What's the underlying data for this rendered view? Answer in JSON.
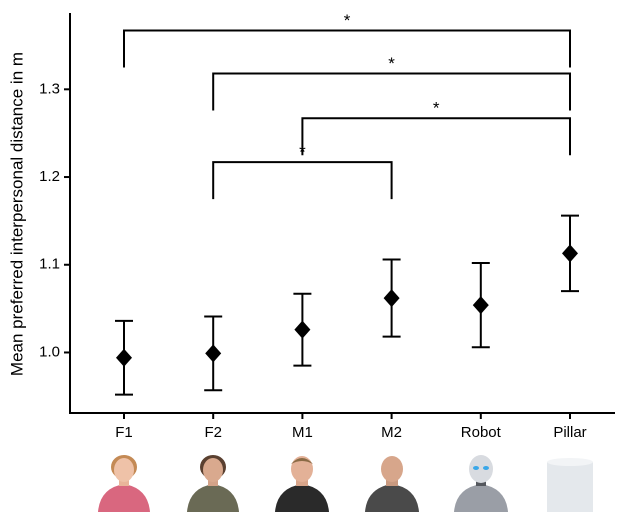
{
  "chart_data": {
    "type": "errorbar",
    "y_label": "Mean preferred interpersonal distance in m",
    "categories": [
      "F1",
      "F2",
      "M1",
      "M2",
      "Robot",
      "Pillar"
    ],
    "values": [
      0.994,
      0.999,
      1.026,
      1.062,
      1.054,
      1.113
    ],
    "errors": [
      0.042,
      0.042,
      0.041,
      0.044,
      0.048,
      0.043
    ],
    "color": "#000000",
    "ylim": [
      0.931,
      1.387
    ],
    "yticks": [
      {
        "value": 1,
        "label": "1.0"
      },
      1.1,
      1.2,
      1.3
    ],
    "brackets": [
      {
        "between": [
          0,
          5
        ],
        "y": 1.367,
        "label": "*"
      },
      {
        "between": [
          1,
          5
        ],
        "y": 1.318,
        "label": "*"
      },
      {
        "between": [
          2,
          5
        ],
        "y": 1.267,
        "label": "*"
      },
      {
        "between": [
          1,
          3
        ],
        "y": 1.217,
        "label": "*"
      }
    ]
  }
}
